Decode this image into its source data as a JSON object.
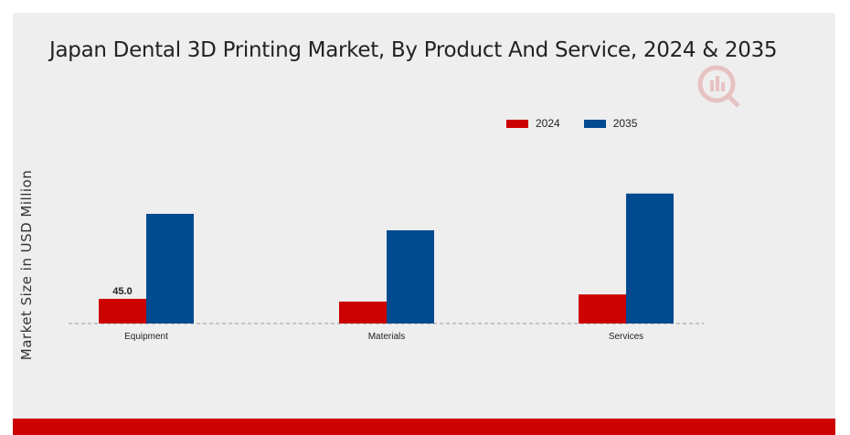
{
  "chart_data": {
    "type": "bar",
    "title": "Japan Dental 3D Printing Market, By Product And Service, 2024 & 2035",
    "ylabel": "Market Size in USD Million",
    "xlabel": "",
    "categories": [
      "Equipment",
      "Materials",
      "Services"
    ],
    "series": [
      {
        "name": "2024",
        "color": "#cc0000",
        "values": [
          45.0,
          40.0,
          53.0
        ],
        "labels": [
          "45.0",
          "",
          ""
        ]
      },
      {
        "name": "2035",
        "color": "#004a8f",
        "values": [
          200.0,
          170.0,
          237.0
        ]
      }
    ],
    "ylim": [
      0,
      260
    ],
    "grid": false,
    "legend_position": "top-right"
  },
  "watermark_icon": "logo-icon"
}
